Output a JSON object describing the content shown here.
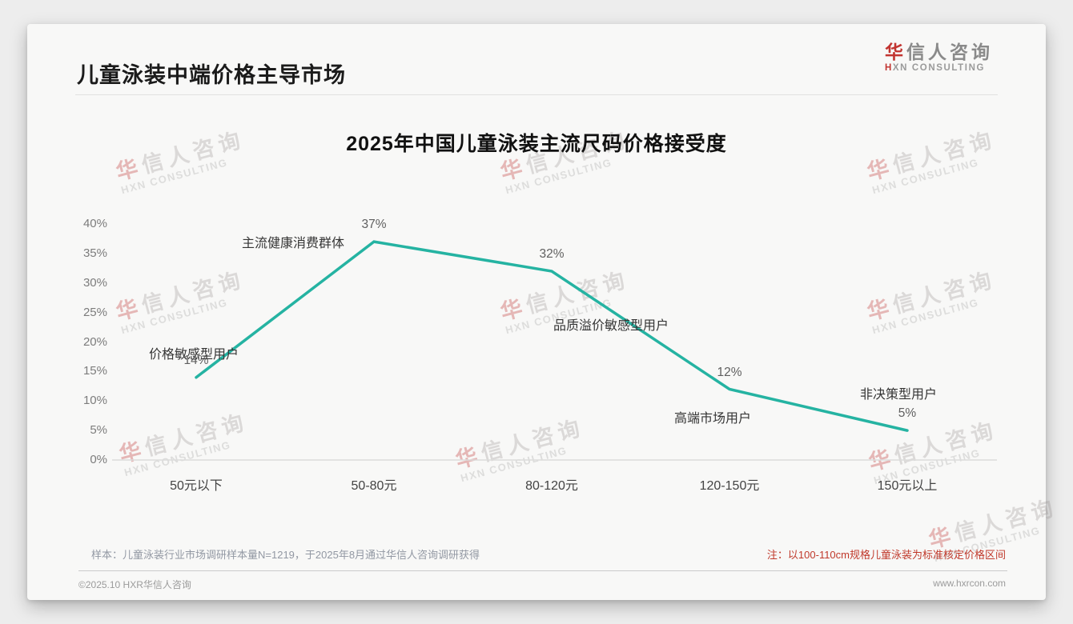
{
  "page": {
    "header": {
      "title": "儿童泳装中端价格主导市场"
    },
    "logo": {
      "cn_first": "华",
      "cn_rest": "信人咨询",
      "en_first": "H",
      "en_rest": "XN CONSULTING"
    },
    "watermark": {
      "cn": "华信人咨询",
      "en": "HXN CONSULTING"
    },
    "footnotes": {
      "sample": "样本：儿童泳装行业市场调研样本量N=1219，于2025年8月通过华信人咨询调研获得",
      "note": "注：以100-110cm规格儿童泳装为标准核定价格区间"
    },
    "footer": {
      "copyright": "©2025.10 HXR华信人咨询",
      "website": "www.hxrcon.com"
    }
  },
  "chart_data": {
    "type": "line",
    "title": "2025年中国儿童泳装主流尺码价格接受度",
    "categories": [
      "50元以下",
      "50-80元",
      "80-120元",
      "120-150元",
      "150元以上"
    ],
    "values": [
      14,
      37,
      32,
      12,
      5
    ],
    "unit": "%",
    "ylim": [
      0,
      40
    ],
    "ytick_step": 5,
    "ytick_suffix": "%",
    "grid": false,
    "legend": "none",
    "line_color": "#25b3a2",
    "annotations": [
      "价格敏感型用户",
      "主流健康消费群体",
      "品质溢价敏感型用户",
      "高端市场用户",
      "非决策型用户"
    ]
  }
}
